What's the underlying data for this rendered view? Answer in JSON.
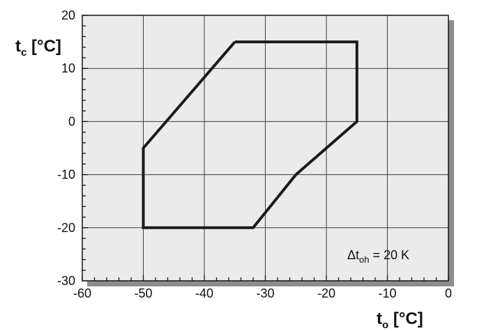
{
  "chart_data": {
    "type": "line",
    "x": [
      -35,
      -15,
      -15,
      -25,
      -32,
      -50,
      -50,
      -35
    ],
    "y": [
      15,
      15,
      0,
      -10,
      -20,
      -20,
      -5,
      15
    ],
    "xlim": [
      -60,
      0
    ],
    "ylim": [
      -30,
      20
    ],
    "xticks": [
      -60,
      -50,
      -40,
      -30,
      -20,
      -10,
      0
    ],
    "yticks": [
      -30,
      -20,
      -10,
      0,
      10,
      20
    ],
    "xticks_labels": [
      "-60",
      "-50",
      "-40",
      "-30",
      "-20",
      "-10",
      "0"
    ],
    "yticks_labels": [
      "-30",
      "-20",
      "-10",
      "0",
      "10",
      "20"
    ],
    "grid": true,
    "xlabel_main": "t",
    "xlabel_sub": "o",
    "xlabel_unit": " [°C]",
    "ylabel_main": "t",
    "ylabel_sub": "c",
    "ylabel_unit": " [°C]",
    "annotation_prefix": "Δt",
    "annotation_sub": "oh",
    "annotation_suffix": " = 20 K",
    "plot_background": "#ebebeb",
    "shadow_color": "#8c8c8c",
    "line_color": "#1a1a1a"
  }
}
